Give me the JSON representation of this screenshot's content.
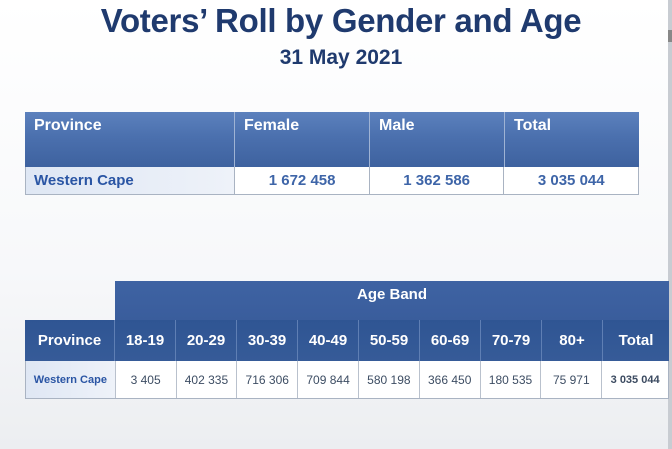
{
  "title": "Voters’ Roll by Gender and Age",
  "subtitle": "31 May 2021",
  "gender_table": {
    "headers": [
      "Province",
      "Female",
      "Male",
      "Total"
    ],
    "row": [
      "Western Cape",
      "1 672 458",
      "1 362 586",
      "3 035 044"
    ]
  },
  "age_table": {
    "band_label": "Age Band",
    "headers": [
      "Province",
      "18-19",
      "20-29",
      "30-39",
      "40-49",
      "50-59",
      "60-69",
      "70-79",
      "80+",
      "Total"
    ],
    "row": [
      "Western Cape",
      "3 405",
      "402 335",
      "716 306",
      "709 844",
      "580 198",
      "366 450",
      "180 535",
      "75 971",
      "3 035 044"
    ]
  },
  "colors": {
    "title": "#1f3a6e",
    "header_blue": "#4b70ae",
    "dark_header_blue": "#2f5593",
    "province_text": "#2a55a4"
  }
}
